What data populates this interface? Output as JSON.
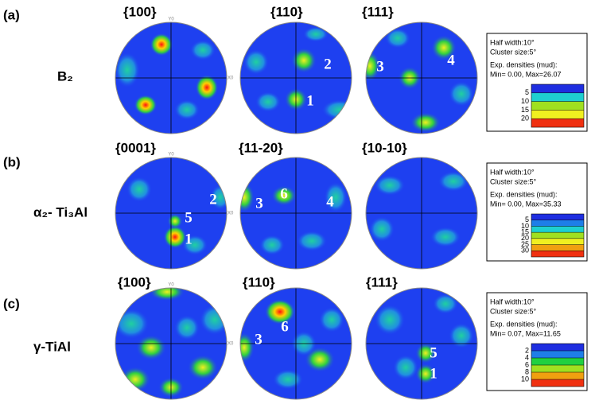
{
  "panels": [
    {
      "label": "(a)",
      "phase": "B₂",
      "axis_labels": [
        "Y0",
        "X0"
      ],
      "poles": [
        {
          "title": "{100}",
          "spots": []
        },
        {
          "title": "{110}",
          "spots": [
            "2",
            "1"
          ]
        },
        {
          "title": "{111}",
          "spots": [
            "3",
            "4"
          ]
        }
      ],
      "legend": {
        "lines": [
          "Half width:10°",
          "Cluster size:5°",
          "Exp. densities (mud):",
          "Min= 0.00, Max=26.07"
        ],
        "levels": [
          5,
          10,
          15,
          20
        ]
      }
    },
    {
      "label": "(b)",
      "phase": "α₂- Ti₃Al",
      "axis_labels": [
        "Y0",
        "X0"
      ],
      "poles": [
        {
          "title": "{0001}",
          "spots": [
            "2",
            "5",
            "1"
          ]
        },
        {
          "title": "{11-20}",
          "spots": [
            "3",
            "6",
            "4"
          ]
        },
        {
          "title": "{10-10}",
          "spots": []
        }
      ],
      "legend": {
        "lines": [
          "Half width:10°",
          "Cluster size:5°",
          "Exp. densities (mud):",
          "Min= 0.00, Max=35.33"
        ],
        "levels": [
          5,
          10,
          15,
          20,
          25,
          30
        ]
      }
    },
    {
      "label": "(c)",
      "phase": "γ-TiAl",
      "axis_labels": [
        "Y0",
        "X0"
      ],
      "poles": [
        {
          "title": "{100}",
          "spots": []
        },
        {
          "title": "{110}",
          "spots": [
            "3",
            "6"
          ]
        },
        {
          "title": "{111}",
          "spots": [
            "5",
            "1"
          ]
        }
      ],
      "legend": {
        "lines": [
          "Half width:10°",
          "Cluster size:5°",
          "Exp. densities (mud):",
          "Min= 0.07, Max=11.65"
        ],
        "levels": [
          2,
          4,
          6,
          8,
          10
        ]
      }
    }
  ]
}
